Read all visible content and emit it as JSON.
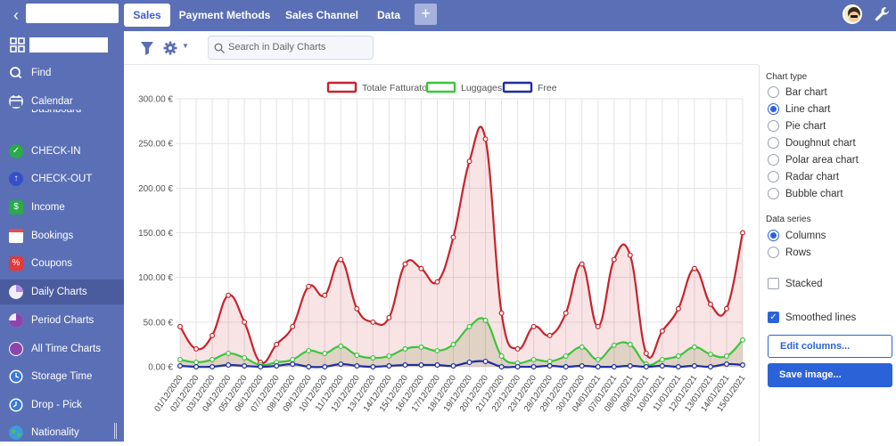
{
  "topbar": {
    "back_icon": "chevron-left-icon",
    "tabs": [
      "Sales",
      "Payment Methods",
      "Sales Channel",
      "Data"
    ],
    "add_tab": "+",
    "settings_icon": "wrench-icon"
  },
  "toolbar": {
    "search_placeholder": "Search in Daily Charts",
    "filter_icon": "filter-icon",
    "gear_icon": "gear-icon"
  },
  "sidebar": {
    "items": [
      {
        "label": "Find",
        "icon": "search-icon"
      },
      {
        "label": "Calendar",
        "icon": "calendar-icon"
      },
      {
        "label": "Dashboard",
        "icon": "dashboard-icon"
      },
      {
        "label": "CHECK-IN",
        "icon": "check-icon",
        "color": "#2aaa4a"
      },
      {
        "label": "CHECK-OUT",
        "icon": "arrow-up-icon",
        "color": "#3550c8"
      },
      {
        "label": "Income",
        "icon": "money-icon",
        "color": "#2aaa4a"
      },
      {
        "label": "Bookings",
        "icon": "calendar-grid-icon",
        "color": "#e05050"
      },
      {
        "label": "Coupons",
        "icon": "percent-icon",
        "color": "#e03a3a"
      },
      {
        "label": "Daily Charts",
        "icon": "pie-icon",
        "color": "#b38be0"
      },
      {
        "label": "Period Charts",
        "icon": "pie-icon",
        "color": "#8e44ad"
      },
      {
        "label": "All Time Charts",
        "icon": "circle-icon",
        "color": "#8e44ad"
      },
      {
        "label": "Storage Time",
        "icon": "clock-icon",
        "color": "#3a7bd5"
      },
      {
        "label": "Drop - Pick",
        "icon": "clock-icon",
        "color": "#3a7bd5"
      },
      {
        "label": "Nationality",
        "icon": "globe-icon",
        "color": "#5cb85c"
      }
    ]
  },
  "panel": {
    "chart_type_heading": "Chart type",
    "chart_types": [
      "Bar chart",
      "Line chart",
      "Pie chart",
      "Doughnut chart",
      "Polar area chart",
      "Radar chart",
      "Bubble chart"
    ],
    "selected_chart_type": "Line chart",
    "data_series_heading": "Data series",
    "data_series": [
      "Columns",
      "Rows"
    ],
    "selected_data_series": "Columns",
    "stacked_label": "Stacked",
    "stacked": false,
    "smoothed_label": "Smoothed lines",
    "smoothed": true,
    "edit_columns": "Edit columns...",
    "save_image": "Save image..."
  },
  "colors": {
    "brand": "#5a6fb5",
    "accent": "#2c62d8",
    "series_red": "#c8232c",
    "series_green": "#3cc43c",
    "series_blue": "#1e2ea0"
  },
  "chart_data": {
    "type": "line",
    "ylim": [
      0,
      300
    ],
    "yticks": [
      "0.00 €",
      "50.00 €",
      "100.00 €",
      "150.00 €",
      "200.00 €",
      "250.00 €",
      "300.00 €"
    ],
    "grid": true,
    "legend_position": "top",
    "smoothed": true,
    "x": [
      "01/12/2020",
      "02/12/2020",
      "03/12/2020",
      "04/12/2020",
      "05/12/2020",
      "06/12/2020",
      "07/12/2020",
      "08/12/2020",
      "09/12/2020",
      "10/12/2020",
      "11/12/2020",
      "12/12/2020",
      "13/12/2020",
      "14/12/2020",
      "15/12/2020",
      "16/12/2020",
      "17/12/2020",
      "18/12/2020",
      "19/12/2020",
      "20/12/2020",
      "21/12/2020",
      "22/12/2020",
      "23/12/2020",
      "28/12/2020",
      "29/12/2020",
      "30/12/2020",
      "04/01/2021",
      "07/01/2021",
      "08/01/2021",
      "09/01/2021",
      "10/01/2021",
      "11/01/2021",
      "12/01/2021",
      "13/01/2021",
      "14/01/2021",
      "15/01/2021"
    ],
    "series": [
      {
        "name": "Totale Fatturato",
        "values": [
          45,
          20,
          35,
          80,
          50,
          5,
          25,
          45,
          90,
          80,
          120,
          65,
          50,
          55,
          115,
          110,
          95,
          145,
          230,
          255,
          60,
          20,
          45,
          35,
          60,
          115,
          45,
          120,
          125,
          15,
          40,
          65,
          110,
          70,
          65,
          150
        ]
      },
      {
        "name": "Luggages",
        "values": [
          8,
          5,
          8,
          15,
          10,
          2,
          5,
          8,
          18,
          15,
          23,
          13,
          10,
          12,
          20,
          22,
          18,
          25,
          45,
          52,
          12,
          4,
          8,
          6,
          12,
          22,
          8,
          24,
          25,
          3,
          8,
          12,
          22,
          14,
          12,
          30
        ]
      },
      {
        "name": "Free",
        "values": [
          1,
          0,
          0,
          2,
          1,
          0,
          1,
          3,
          0,
          0,
          3,
          1,
          0,
          1,
          2,
          2,
          2,
          1,
          5,
          6,
          0,
          0,
          0,
          1,
          0,
          1,
          0,
          0,
          1,
          0,
          1,
          0,
          1,
          0,
          3,
          2
        ]
      }
    ]
  }
}
